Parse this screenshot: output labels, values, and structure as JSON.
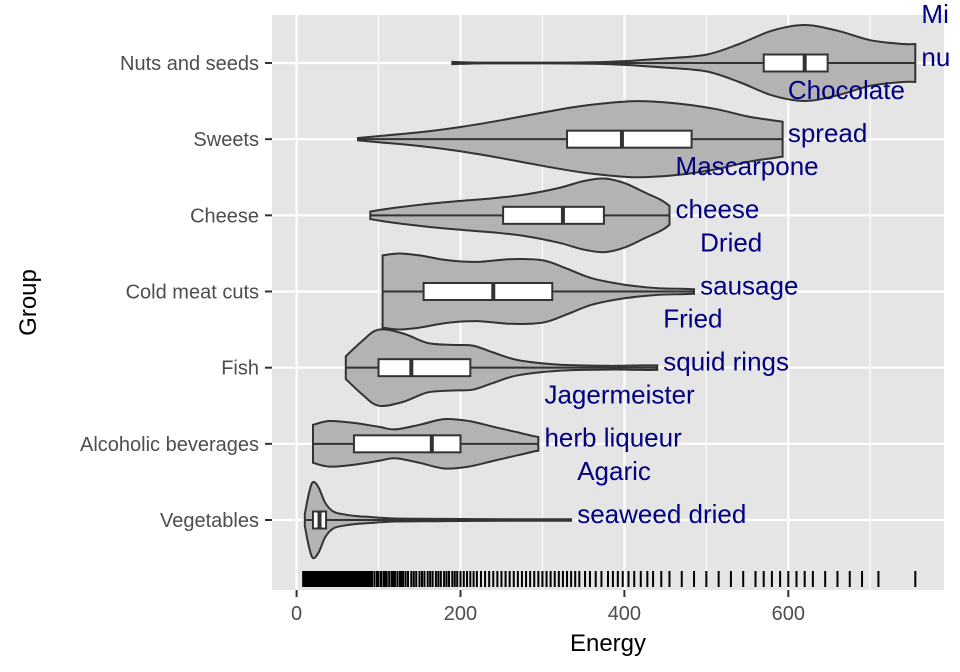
{
  "chart_data": {
    "type": "violin",
    "xlabel": "Energy",
    "ylabel": "Group",
    "xlim": [
      -30,
      790
    ],
    "x_ticks": [
      0,
      200,
      400,
      600
    ],
    "x_tick_labels": [
      "0",
      "200",
      "400",
      "600"
    ],
    "grid": true,
    "legend": "none",
    "colors": {
      "panel": "#e5e5e5",
      "grid": "#ffffff",
      "violin_fill": "#b3b3b3",
      "violin_stroke": "#333333",
      "box_fill": "#ffffff",
      "annotation": "#000080",
      "tick_text": "#4d4d4d"
    },
    "groups": [
      {
        "name": "Nuts and seeds",
        "min": 190,
        "q1": 570,
        "median": 620,
        "q3": 648,
        "max": 755,
        "density": [
          [
            190,
            0.03
          ],
          [
            230,
            0.01
          ],
          [
            300,
            0.01
          ],
          [
            360,
            0.02
          ],
          [
            400,
            0.05
          ],
          [
            450,
            0.12
          ],
          [
            500,
            0.22
          ],
          [
            540,
            0.5
          ],
          [
            580,
            0.85
          ],
          [
            620,
            1.0
          ],
          [
            660,
            0.85
          ],
          [
            700,
            0.6
          ],
          [
            740,
            0.5
          ],
          [
            755,
            0.5
          ]
        ]
      },
      {
        "name": "Sweets",
        "min": 75,
        "q1": 330,
        "median": 397,
        "q3": 482,
        "max": 593,
        "density": [
          [
            75,
            0.03
          ],
          [
            100,
            0.08
          ],
          [
            150,
            0.18
          ],
          [
            200,
            0.32
          ],
          [
            250,
            0.5
          ],
          [
            300,
            0.7
          ],
          [
            350,
            0.88
          ],
          [
            410,
            1.0
          ],
          [
            460,
            0.95
          ],
          [
            510,
            0.8
          ],
          [
            550,
            0.6
          ],
          [
            580,
            0.5
          ],
          [
            593,
            0.46
          ]
        ]
      },
      {
        "name": "Cheese",
        "min": 90,
        "q1": 252,
        "median": 325,
        "q3": 375,
        "max": 455,
        "density": [
          [
            90,
            0.1
          ],
          [
            120,
            0.2
          ],
          [
            160,
            0.3
          ],
          [
            200,
            0.38
          ],
          [
            240,
            0.45
          ],
          [
            280,
            0.55
          ],
          [
            320,
            0.72
          ],
          [
            350,
            0.9
          ],
          [
            375,
            0.97
          ],
          [
            400,
            0.85
          ],
          [
            425,
            0.6
          ],
          [
            445,
            0.4
          ],
          [
            455,
            0.25
          ]
        ]
      },
      {
        "name": "Cold meat cuts",
        "min": 105,
        "q1": 155,
        "median": 240,
        "q3": 312,
        "max": 485,
        "density": [
          [
            105,
            0.95
          ],
          [
            125,
            1.0
          ],
          [
            150,
            0.95
          ],
          [
            185,
            0.82
          ],
          [
            220,
            0.78
          ],
          [
            260,
            0.85
          ],
          [
            300,
            0.82
          ],
          [
            330,
            0.6
          ],
          [
            360,
            0.35
          ],
          [
            400,
            0.18
          ],
          [
            440,
            0.09
          ],
          [
            470,
            0.07
          ],
          [
            485,
            0.06
          ]
        ]
      },
      {
        "name": "Fish",
        "min": 60,
        "q1": 100,
        "median": 140,
        "q3": 212,
        "max": 440,
        "density": [
          [
            60,
            0.3
          ],
          [
            80,
            0.7
          ],
          [
            100,
            1.0
          ],
          [
            130,
            0.9
          ],
          [
            160,
            0.65
          ],
          [
            190,
            0.6
          ],
          [
            215,
            0.58
          ],
          [
            240,
            0.4
          ],
          [
            270,
            0.2
          ],
          [
            320,
            0.08
          ],
          [
            380,
            0.05
          ],
          [
            420,
            0.06
          ],
          [
            440,
            0.06
          ]
        ]
      },
      {
        "name": "Alcoholic beverages",
        "min": 20,
        "q1": 70,
        "median": 165,
        "q3": 200,
        "max": 295,
        "density": [
          [
            20,
            0.5
          ],
          [
            40,
            0.6
          ],
          [
            70,
            0.55
          ],
          [
            100,
            0.45
          ],
          [
            120,
            0.38
          ],
          [
            150,
            0.5
          ],
          [
            180,
            0.65
          ],
          [
            210,
            0.6
          ],
          [
            240,
            0.45
          ],
          [
            270,
            0.3
          ],
          [
            290,
            0.2
          ],
          [
            295,
            0.18
          ]
        ]
      },
      {
        "name": "Vegetables",
        "min": 10,
        "q1": 20,
        "median": 28,
        "q3": 36,
        "max": 335,
        "density": [
          [
            10,
            0.15
          ],
          [
            15,
            0.7
          ],
          [
            20,
            1.0
          ],
          [
            27,
            0.85
          ],
          [
            35,
            0.45
          ],
          [
            45,
            0.22
          ],
          [
            60,
            0.14
          ],
          [
            75,
            0.1
          ],
          [
            90,
            0.08
          ],
          [
            120,
            0.04
          ],
          [
            180,
            0.03
          ],
          [
            260,
            0.02
          ],
          [
            335,
            0.02
          ]
        ]
      }
    ],
    "annotations": [
      {
        "text": "Mi",
        "energy": 760,
        "group": "Nuts and seeds",
        "line": 1
      },
      {
        "text": "nu",
        "energy": 760,
        "group": "Nuts and seeds",
        "line": 2
      },
      {
        "text": "Chocolate",
        "energy": 597,
        "group": "Sweets",
        "line": 1
      },
      {
        "text": "spread",
        "energy": 597,
        "group": "Sweets",
        "line": 2
      },
      {
        "text": "Mascarpone",
        "energy": 460,
        "group": "Cheese",
        "line": 1
      },
      {
        "text": "cheese",
        "energy": 460,
        "group": "Cheese",
        "line": 2
      },
      {
        "text": "Dried",
        "energy": 490,
        "group": "Cold meat cuts",
        "line": 1
      },
      {
        "text": "sausage",
        "energy": 490,
        "group": "Cold meat cuts",
        "line": 2
      },
      {
        "text": "Fried",
        "energy": 445,
        "group": "Fish",
        "line": 1
      },
      {
        "text": "squid rings",
        "energy": 445,
        "group": "Fish",
        "line": 2
      },
      {
        "text": "Jagermeister",
        "energy": 300,
        "group": "Alcoholic beverages",
        "line": 1
      },
      {
        "text": "herb liqueur",
        "energy": 300,
        "group": "Alcoholic beverages",
        "line": 2
      },
      {
        "text": "Agaric",
        "energy": 340,
        "group": "Vegetables",
        "line": 1
      },
      {
        "text": "seaweed dried",
        "energy": 340,
        "group": "Vegetables",
        "line": 2
      }
    ],
    "rug": [
      8,
      10,
      12,
      14,
      15,
      16,
      17,
      18,
      19,
      20,
      21,
      22,
      23,
      24,
      25,
      26,
      27,
      28,
      29,
      30,
      31,
      32,
      33,
      34,
      35,
      36,
      37,
      38,
      40,
      42,
      44,
      46,
      48,
      50,
      52,
      54,
      56,
      58,
      60,
      62,
      64,
      66,
      68,
      70,
      72,
      74,
      76,
      78,
      80,
      82,
      84,
      86,
      88,
      90,
      92,
      95,
      98,
      100,
      103,
      106,
      108,
      110,
      113,
      116,
      118,
      120,
      123,
      126,
      128,
      130,
      133,
      136,
      140,
      143,
      146,
      150,
      153,
      156,
      160,
      163,
      166,
      170,
      173,
      176,
      180,
      183,
      186,
      190,
      193,
      196,
      200,
      204,
      208,
      212,
      216,
      220,
      225,
      230,
      235,
      240,
      245,
      250,
      255,
      260,
      265,
      270,
      275,
      280,
      285,
      290,
      295,
      300,
      305,
      310,
      315,
      320,
      325,
      330,
      335,
      340,
      345,
      352,
      358,
      365,
      372,
      380,
      386,
      392,
      398,
      405,
      412,
      420,
      428,
      435,
      445,
      455,
      470,
      485,
      500,
      515,
      530,
      545,
      560,
      570,
      580,
      590,
      600,
      610,
      620,
      630,
      645,
      660,
      675,
      690,
      710,
      755
    ]
  }
}
